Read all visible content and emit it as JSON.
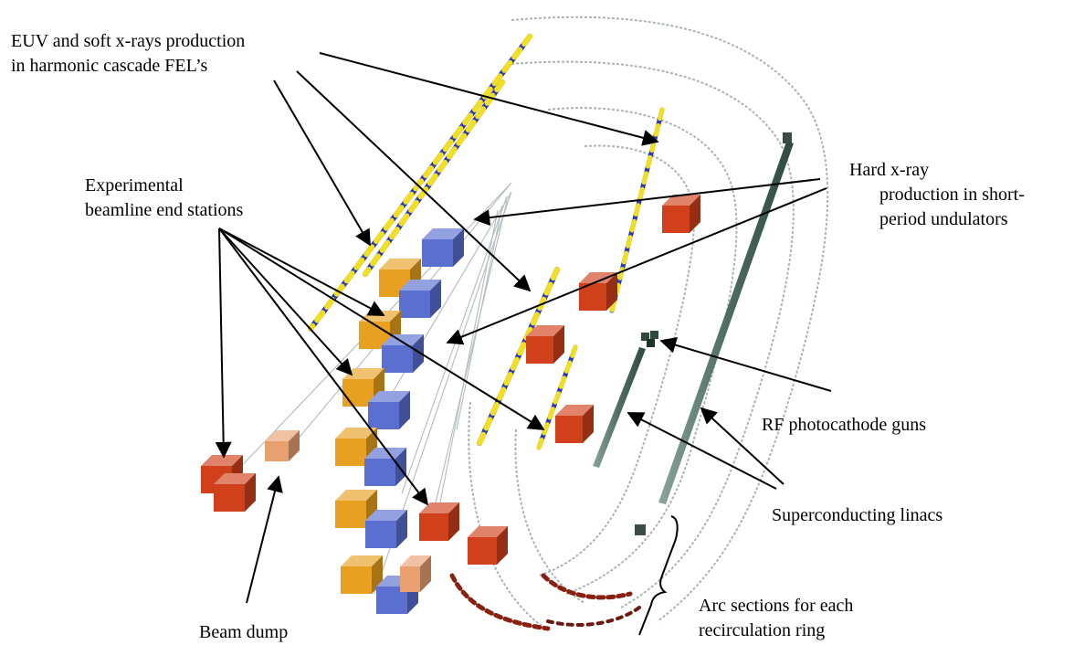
{
  "labels": {
    "euv": [
      "EUV and soft x-rays production",
      "in harmonic cascade FEL’s"
    ],
    "hard_xray": [
      "Hard x-ray",
      "production in short-",
      "period undulators"
    ],
    "experimental": [
      "Experimental",
      "beamline end stations"
    ],
    "rf_guns": [
      "RF photocathode guns"
    ],
    "linacs": [
      "Superconducting linacs"
    ],
    "arc": [
      "Arc sections for each",
      "recirculation ring"
    ],
    "beam_dump": [
      "Beam dump"
    ]
  },
  "colors": {
    "orange_station": "#e8a020",
    "blue_station": "#5a6fd0",
    "red_station": "#d0401a",
    "tan_dump": "#e8a070",
    "undulator_yellow": "#f2e020",
    "undulator_blue": "#2a38b0",
    "beamline_gray": "#9aa4a8",
    "linac_green": "#4a6a5e",
    "arc_red": "#8a2010"
  }
}
